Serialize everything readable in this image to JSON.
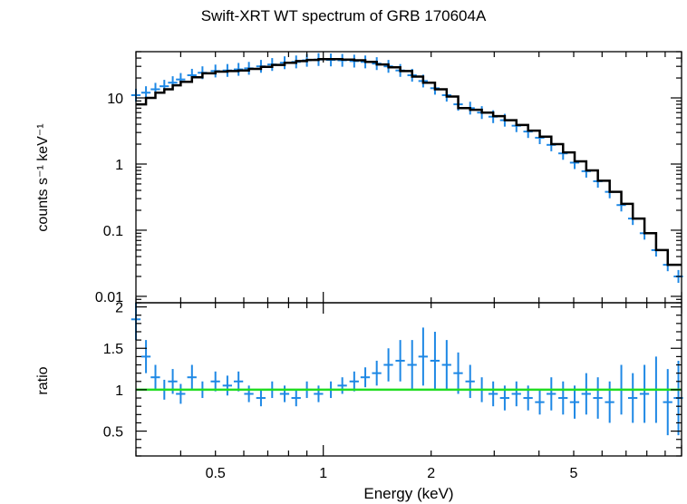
{
  "chart_data": [
    {
      "type": "scatter",
      "title": "Swift-XRT WT spectrum of GRB 170604A",
      "xlabel": "",
      "ylabel": "counts s⁻¹ keV⁻¹",
      "xscale": "log",
      "yscale": "log",
      "xlim": [
        0.3,
        10
      ],
      "ylim": [
        0.008,
        50
      ],
      "yticks": [
        0.01,
        0.1,
        1,
        10
      ],
      "ytick_labels": [
        "0.01",
        "0.1",
        "1",
        "10"
      ],
      "series": [
        {
          "role": "data",
          "color": "#1e88e5",
          "x": [
            0.3,
            0.32,
            0.34,
            0.36,
            0.38,
            0.4,
            0.43,
            0.46,
            0.5,
            0.54,
            0.58,
            0.62,
            0.67,
            0.72,
            0.78,
            0.84,
            0.9,
            0.97,
            1.05,
            1.13,
            1.22,
            1.31,
            1.41,
            1.52,
            1.64,
            1.77,
            1.9,
            2.05,
            2.21,
            2.38,
            2.57,
            2.77,
            2.98,
            3.21,
            3.46,
            3.73,
            4.02,
            4.33,
            4.67,
            5.03,
            5.42,
            5.84,
            6.3,
            6.79,
            7.31,
            7.88,
            8.49,
            9.15,
            9.8
          ],
          "y": [
            11,
            12,
            13.5,
            15,
            17,
            19,
            22,
            24,
            25.5,
            26,
            27,
            28,
            30,
            32,
            34,
            35,
            37,
            38,
            37.5,
            37,
            36,
            35,
            33,
            30,
            26,
            22,
            18,
            14,
            11,
            8,
            7,
            6,
            5.2,
            4.6,
            3.8,
            3.1,
            2.5,
            1.95,
            1.45,
            1.05,
            0.78,
            0.55,
            0.38,
            0.24,
            0.15,
            0.09,
            0.05,
            0.03,
            0.02
          ]
        },
        {
          "role": "model",
          "color": "#000000",
          "x": [
            0.3,
            0.32,
            0.34,
            0.36,
            0.38,
            0.4,
            0.43,
            0.46,
            0.5,
            0.54,
            0.58,
            0.62,
            0.67,
            0.72,
            0.78,
            0.84,
            0.9,
            0.97,
            1.05,
            1.13,
            1.22,
            1.31,
            1.41,
            1.52,
            1.64,
            1.77,
            1.9,
            2.05,
            2.21,
            2.38,
            2.57,
            2.77,
            2.98,
            3.21,
            3.46,
            3.73,
            4.02,
            4.33,
            4.67,
            5.03,
            5.42,
            5.84,
            6.3,
            6.79,
            7.31,
            7.88,
            8.49,
            9.15,
            9.8
          ],
          "y": [
            8,
            10,
            12,
            13.5,
            15.5,
            17.5,
            20.5,
            23.5,
            25,
            25.5,
            26,
            27.5,
            29.5,
            31.5,
            34,
            36,
            37.5,
            38.5,
            38.5,
            38,
            37,
            35,
            32,
            29,
            25.5,
            21,
            17,
            13.5,
            10.5,
            7,
            6.6,
            6.0,
            5.3,
            4.6,
            3.9,
            3.2,
            2.6,
            2.0,
            1.5,
            1.1,
            0.8,
            0.56,
            0.38,
            0.25,
            0.15,
            0.09,
            0.05,
            0.03,
            0.03
          ]
        }
      ]
    },
    {
      "type": "scatter",
      "title": "",
      "xlabel": "Energy (keV)",
      "ylabel": "ratio",
      "xscale": "log",
      "xlim": [
        0.3,
        10
      ],
      "ylim": [
        0.2,
        2.05
      ],
      "xticks": [
        0.5,
        1,
        2,
        5
      ],
      "xtick_labels": [
        "0.5",
        "1",
        "2",
        "5"
      ],
      "yticks": [
        0.5,
        1,
        1.5,
        2
      ],
      "ytick_labels": [
        "0.5",
        "1",
        "1.5",
        "2"
      ],
      "reference_line": {
        "y": 1,
        "color": "#22dd22"
      },
      "series": [
        {
          "role": "data",
          "color": "#1e88e5",
          "x": [
            0.3,
            0.32,
            0.34,
            0.36,
            0.38,
            0.4,
            0.43,
            0.46,
            0.5,
            0.54,
            0.58,
            0.62,
            0.67,
            0.72,
            0.78,
            0.84,
            0.9,
            0.97,
            1.05,
            1.13,
            1.22,
            1.31,
            1.41,
            1.52,
            1.64,
            1.77,
            1.9,
            2.05,
            2.21,
            2.38,
            2.57,
            2.77,
            2.98,
            3.21,
            3.46,
            3.73,
            4.02,
            4.33,
            4.67,
            5.03,
            5.42,
            5.84,
            6.3,
            6.79,
            7.31,
            7.88,
            8.49,
            9.15,
            9.8
          ],
          "y": [
            1.85,
            1.4,
            1.15,
            1.0,
            1.1,
            0.95,
            1.15,
            1.0,
            1.1,
            1.05,
            1.1,
            0.95,
            0.9,
            1.0,
            0.95,
            0.9,
            1.0,
            0.95,
            1.0,
            1.05,
            1.1,
            1.15,
            1.2,
            1.3,
            1.35,
            1.3,
            1.4,
            1.35,
            1.3,
            1.2,
            1.1,
            1.0,
            0.95,
            0.9,
            0.95,
            0.9,
            0.85,
            0.95,
            0.9,
            0.85,
            0.95,
            0.9,
            0.85,
            1.0,
            0.9,
            0.95,
            1.0,
            0.85,
            0.9
          ],
          "yerr": [
            0.25,
            0.2,
            0.15,
            0.12,
            0.15,
            0.12,
            0.15,
            0.1,
            0.12,
            0.12,
            0.12,
            0.1,
            0.1,
            0.1,
            0.1,
            0.1,
            0.1,
            0.1,
            0.1,
            0.1,
            0.12,
            0.12,
            0.15,
            0.2,
            0.25,
            0.3,
            0.35,
            0.35,
            0.3,
            0.25,
            0.2,
            0.15,
            0.15,
            0.15,
            0.15,
            0.15,
            0.15,
            0.2,
            0.2,
            0.2,
            0.25,
            0.25,
            0.25,
            0.3,
            0.3,
            0.35,
            0.4,
            0.4,
            0.45
          ]
        }
      ]
    }
  ]
}
